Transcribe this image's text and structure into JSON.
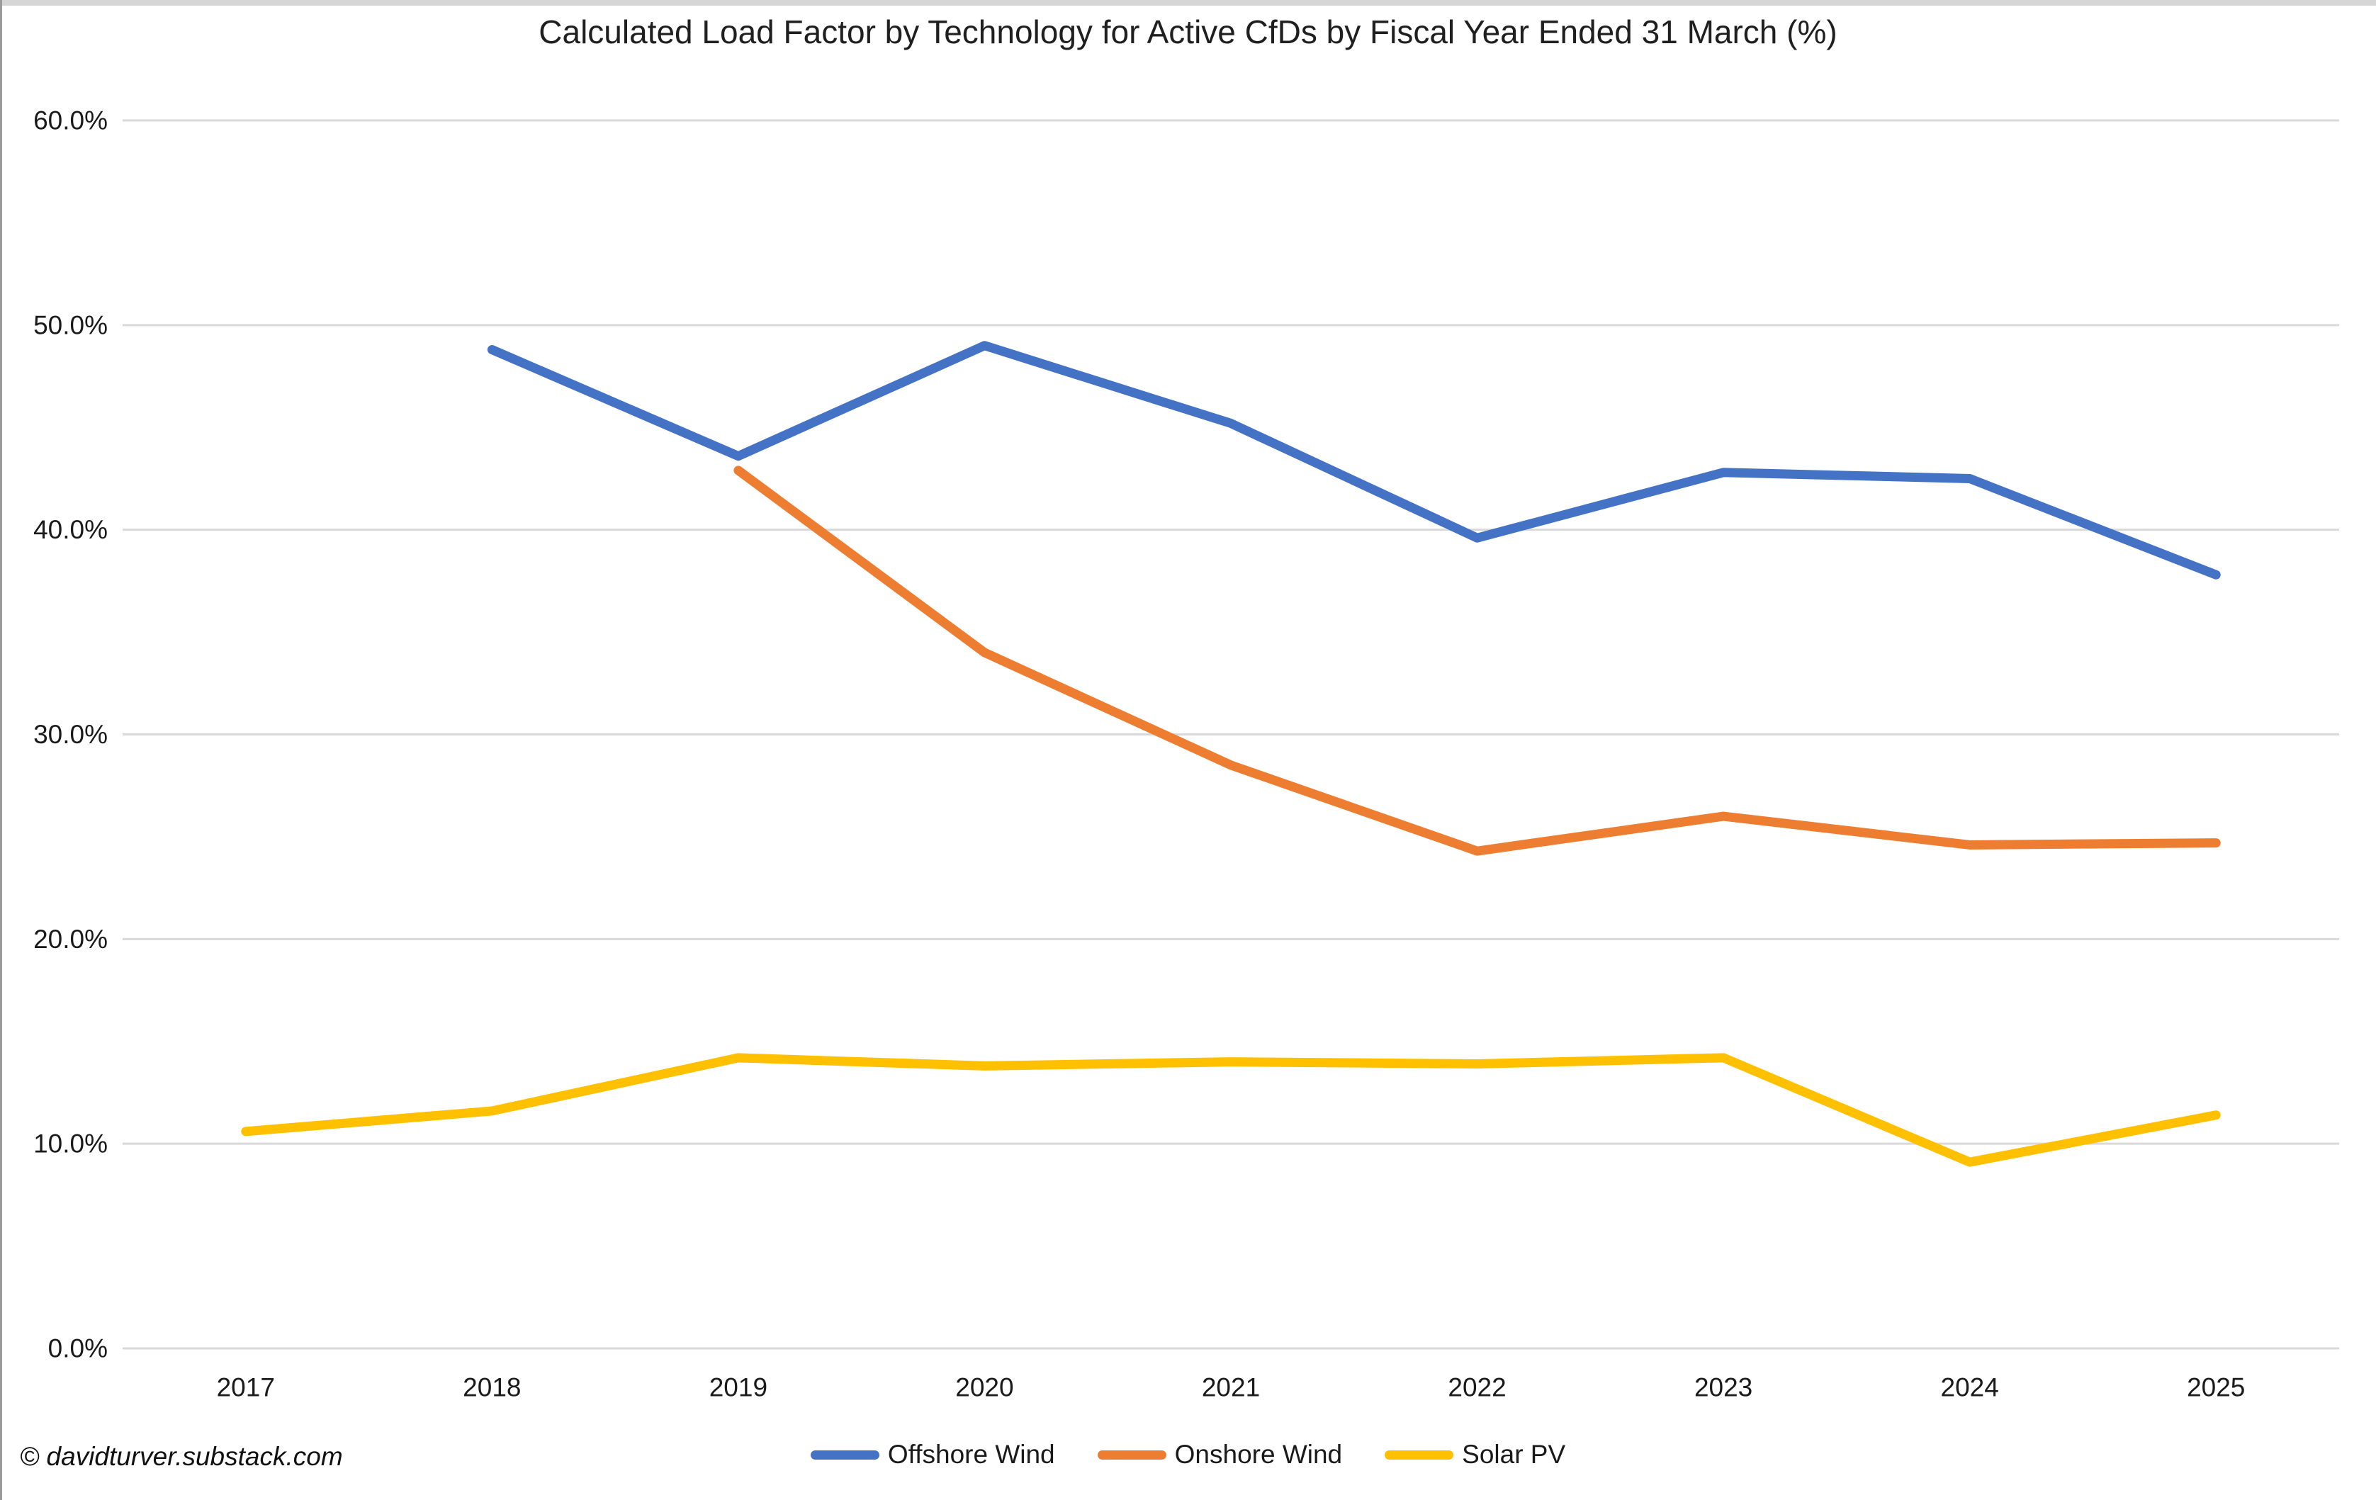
{
  "title": "Calculated Load Factor by Technology for Active CfDs by Fiscal Year Ended 31 March (%)",
  "footer": "© davidturver.substack.com",
  "chart_data": {
    "type": "line",
    "title": "Calculated Load Factor by Technology for Active CfDs by Fiscal Year Ended 31 March (%)",
    "x": [
      "2017",
      "2018",
      "2019",
      "2020",
      "2021",
      "2022",
      "2023",
      "2024",
      "2025"
    ],
    "series": [
      {
        "name": "Offshore Wind",
        "color": "#4472C4",
        "values": [
          null,
          48.8,
          43.6,
          49.0,
          45.2,
          39.6,
          42.8,
          42.5,
          37.8
        ]
      },
      {
        "name": "Onshore Wind",
        "color": "#ED7D31",
        "values": [
          null,
          null,
          42.9,
          34.0,
          28.5,
          24.3,
          26.0,
          24.6,
          24.7
        ]
      },
      {
        "name": "Solar PV",
        "color": "#FFC000",
        "values": [
          10.6,
          11.6,
          14.2,
          13.8,
          14.0,
          13.9,
          14.2,
          9.1,
          11.4
        ]
      }
    ],
    "xlabel": "",
    "ylabel": "",
    "ylim": [
      0,
      60
    ],
    "ytick_step": 10,
    "ytick_labels": [
      "0.0%",
      "10.0%",
      "20.0%",
      "30.0%",
      "40.0%",
      "50.0%",
      "60.0%"
    ],
    "grid": true,
    "gridline_color": "#D9D9D9",
    "axis_text_color": "#1a1a1a",
    "legend_position": "bottom"
  }
}
